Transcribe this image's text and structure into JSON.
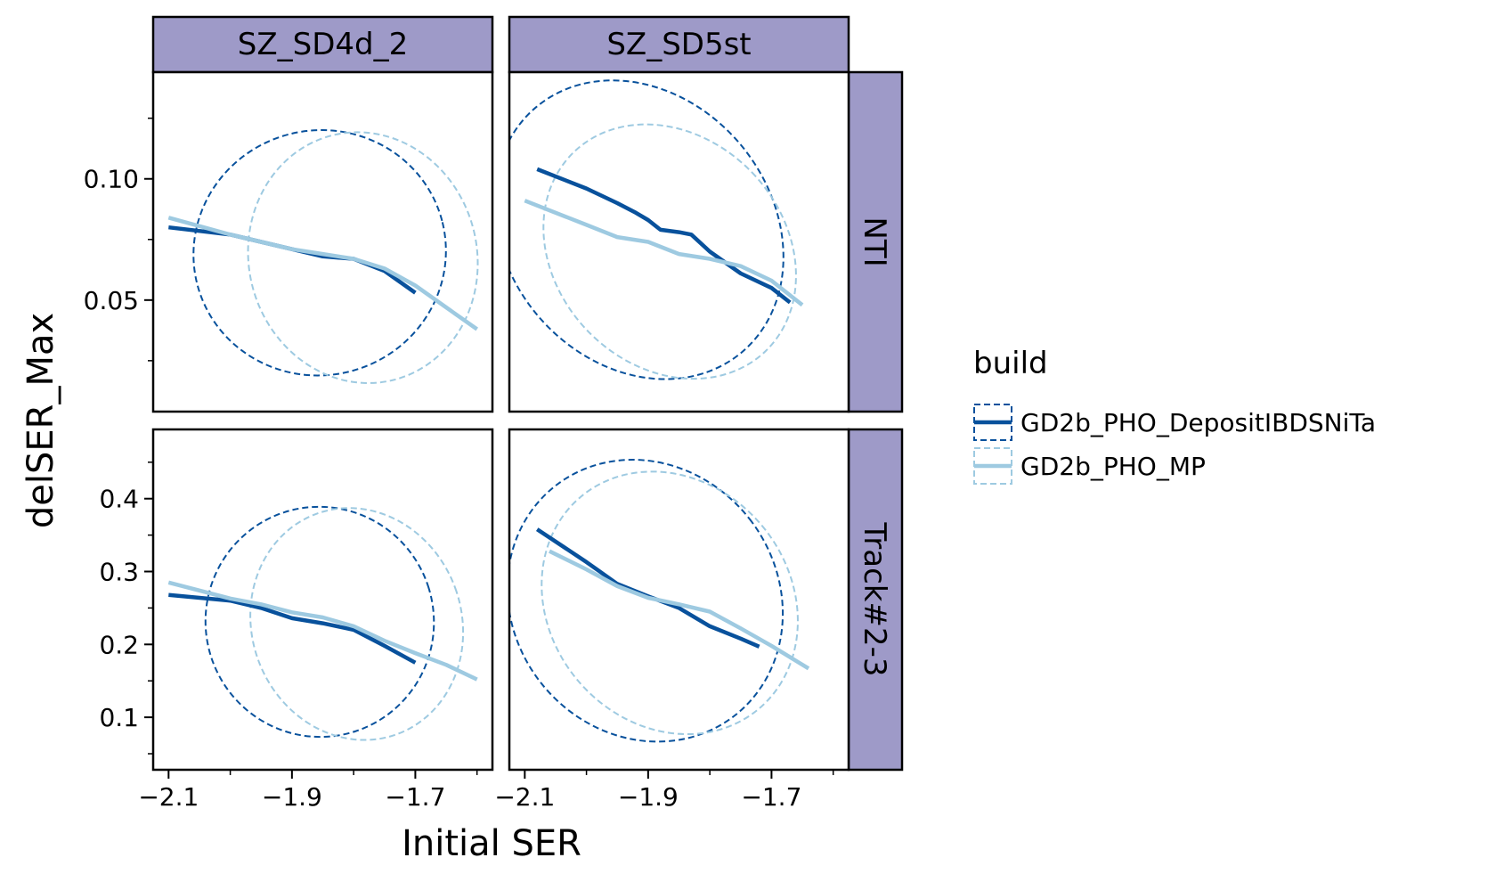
{
  "chart_data": {
    "type": "line",
    "facet_cols": [
      "SZ_SD4d_2",
      "SZ_SD5st"
    ],
    "facet_rows": [
      "NTI",
      "Track#2-3"
    ],
    "xlabel": "Initial SER",
    "ylabel": "delSER_Max",
    "x_ticks": [
      {
        "value": -2.1,
        "label": "−2.1"
      },
      {
        "value": -1.9,
        "label": "−1.9"
      },
      {
        "value": -1.7,
        "label": "−1.7"
      }
    ],
    "y_ticks": {
      "NTI": [
        {
          "value": 0.05,
          "label": "0.05"
        },
        {
          "value": 0.1,
          "label": "0.10"
        }
      ],
      "Track#2-3": [
        {
          "value": 0.1,
          "label": "0.1"
        },
        {
          "value": 0.2,
          "label": "0.2"
        },
        {
          "value": 0.3,
          "label": "0.3"
        },
        {
          "value": 0.4,
          "label": "0.4"
        }
      ]
    },
    "y_minor_ticks": {
      "NTI": [
        0.025,
        0.075,
        0.125
      ],
      "Track#2-3": [
        0.05,
        0.15,
        0.25,
        0.35,
        0.45
      ]
    },
    "x_minor_ticks": [
      -2.0,
      -1.8,
      -1.6
    ],
    "xlim": [
      -2.125,
      -1.575
    ],
    "ylim": {
      "NTI": [
        0.004,
        0.144
      ],
      "Track#2-3": [
        0.028,
        0.495
      ]
    },
    "legend": {
      "title": "build",
      "placement": "right",
      "entries": [
        "GD2b_PHO_DepositIBDSNiTa",
        "GD2b_PHO_MP"
      ]
    },
    "colors": {
      "GD2b_PHO_DepositIBDSNiTa": "#08519c",
      "GD2b_PHO_MP": "#9ecae1",
      "strip": "#9e9ac8"
    },
    "panels": [
      {
        "row": "NTI",
        "col": "SZ_SD4d_2",
        "series": [
          {
            "name": "GD2b_PHO_DepositIBDSNiTa",
            "x": [
              -2.1,
              -2.0,
              -1.95,
              -1.9,
              -1.85,
              -1.8,
              -1.75,
              -1.7
            ],
            "y": [
              0.08,
              0.077,
              0.074,
              0.071,
              0.068,
              0.067,
              0.062,
              0.053
            ]
          },
          {
            "name": "GD2b_PHO_MP",
            "x": [
              -2.1,
              -2.0,
              -1.95,
              -1.9,
              -1.85,
              -1.8,
              -1.75,
              -1.7,
              -1.65,
              -1.6
            ],
            "y": [
              0.084,
              0.077,
              0.074,
              0.071,
              0.069,
              0.067,
              0.063,
              0.056,
              0.047,
              0.038
            ]
          }
        ],
        "ellipses": [
          {
            "name": "GD2b_PHO_DepositIBDSNiTa",
            "cx": -1.855,
            "cy": 0.0695,
            "rx": 0.205,
            "ry": 0.0505,
            "tilt_deg": -14
          },
          {
            "name": "GD2b_PHO_MP",
            "cx": -1.785,
            "cy": 0.0675,
            "rx": 0.185,
            "ry": 0.052,
            "tilt_deg": -14
          }
        ]
      },
      {
        "row": "NTI",
        "col": "SZ_SD5st",
        "series": [
          {
            "name": "GD2b_PHO_DepositIBDSNiTa",
            "x": [
              -2.08,
              -2.0,
              -1.95,
              -1.92,
              -1.9,
              -1.88,
              -1.85,
              -1.83,
              -1.8,
              -1.75,
              -1.7,
              -1.67
            ],
            "y": [
              0.104,
              0.096,
              0.09,
              0.086,
              0.083,
              0.079,
              0.078,
              0.077,
              0.07,
              0.061,
              0.055,
              0.049
            ]
          },
          {
            "name": "GD2b_PHO_MP",
            "x": [
              -2.1,
              -2.0,
              -1.95,
              -1.9,
              -1.85,
              -1.8,
              -1.75,
              -1.7,
              -1.65
            ],
            "y": [
              0.091,
              0.081,
              0.076,
              0.074,
              0.069,
              0.067,
              0.064,
              0.058,
              0.048
            ]
          }
        ],
        "ellipses": [
          {
            "name": "GD2b_PHO_DepositIBDSNiTa",
            "cx": -1.915,
            "cy": 0.079,
            "rx": 0.215,
            "ry": 0.066,
            "tilt_deg": -40
          },
          {
            "name": "GD2b_PHO_MP",
            "cx": -1.865,
            "cy": 0.07,
            "rx": 0.185,
            "ry": 0.057,
            "tilt_deg": -44
          }
        ]
      },
      {
        "row": "Track#2-3",
        "col": "SZ_SD4d_2",
        "series": [
          {
            "name": "GD2b_PHO_DepositIBDSNiTa",
            "x": [
              -2.1,
              -2.0,
              -1.95,
              -1.9,
              -1.85,
              -1.8,
              -1.75,
              -1.7
            ],
            "y": [
              0.268,
              0.26,
              0.25,
              0.236,
              0.229,
              0.22,
              0.198,
              0.175
            ]
          },
          {
            "name": "GD2b_PHO_MP",
            "x": [
              -2.1,
              -2.0,
              -1.95,
              -1.9,
              -1.85,
              -1.8,
              -1.75,
              -1.7,
              -1.65,
              -1.6
            ],
            "y": [
              0.285,
              0.263,
              0.255,
              0.244,
              0.237,
              0.225,
              0.205,
              0.188,
              0.172,
              0.152
            ]
          }
        ],
        "ellipses": [
          {
            "name": "GD2b_PHO_DepositIBDSNiTa",
            "cx": -1.855,
            "cy": 0.231,
            "rx": 0.185,
            "ry": 0.158,
            "tilt_deg": -18
          },
          {
            "name": "GD2b_PHO_MP",
            "cx": -1.795,
            "cy": 0.228,
            "rx": 0.17,
            "ry": 0.161,
            "tilt_deg": -20
          }
        ]
      },
      {
        "row": "Track#2-3",
        "col": "SZ_SD5st",
        "series": [
          {
            "name": "GD2b_PHO_DepositIBDSNiTa",
            "x": [
              -2.08,
              -2.0,
              -1.95,
              -1.9,
              -1.85,
              -1.8,
              -1.75,
              -1.72
            ],
            "y": [
              0.358,
              0.313,
              0.283,
              0.266,
              0.25,
              0.225,
              0.208,
              0.197
            ]
          },
          {
            "name": "GD2b_PHO_MP",
            "x": [
              -2.06,
              -2.0,
              -1.95,
              -1.9,
              -1.85,
              -1.8,
              -1.75,
              -1.7,
              -1.64
            ],
            "y": [
              0.328,
              0.303,
              0.28,
              0.264,
              0.255,
              0.245,
              0.222,
              0.198,
              0.167
            ]
          }
        ],
        "ellipses": [
          {
            "name": "GD2b_PHO_DepositIBDSNiTa",
            "cx": -1.905,
            "cy": 0.26,
            "rx": 0.215,
            "ry": 0.2,
            "tilt_deg": -38
          },
          {
            "name": "GD2b_PHO_MP",
            "cx": -1.865,
            "cy": 0.257,
            "rx": 0.195,
            "ry": 0.19,
            "tilt_deg": -40
          }
        ]
      }
    ]
  }
}
